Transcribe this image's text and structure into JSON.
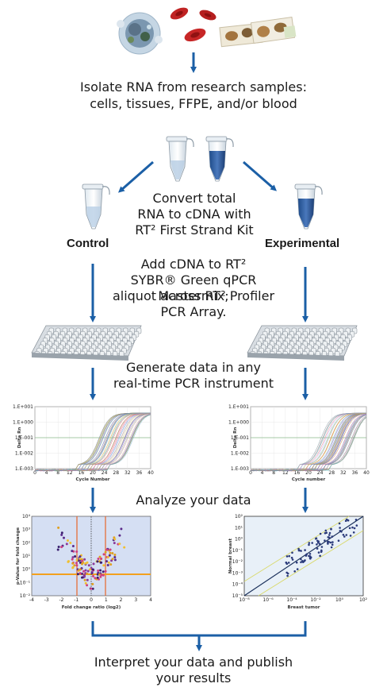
{
  "steps": {
    "isolate": [
      "Isolate RNA from research samples:",
      "cells, tissues, FFPE, and/or blood"
    ],
    "convert": [
      "Convert total",
      "RNA to cDNA with",
      "RT² First Strand Kit"
    ],
    "add": [
      "Add cDNA to RT²",
      "SYBR® Green qPCR Mastermix;",
      "aliquot across RT² Profiler",
      "PCR Array."
    ],
    "generate": [
      "Generate data in any",
      "real-time PCR instrument"
    ],
    "analyze": "Analyze your data",
    "interpret": [
      "Interpret your data and publish",
      "your results"
    ]
  },
  "labels": {
    "control": "Control",
    "experimental": "Experimental"
  },
  "amp_left": {
    "yticks": [
      "1.E+001",
      "1.E+000",
      "1.E-001",
      "1.E-002",
      "1.E-003"
    ],
    "xticks": [
      "0",
      "4",
      "8",
      "12",
      "16",
      "20",
      "24",
      "28",
      "32",
      "36",
      "40"
    ],
    "ylabel": "Delta Rn",
    "xlabel": "Cycle Number"
  },
  "amp_right": {
    "yticks": [
      "1.E+001",
      "1.E+000",
      "1.E-001",
      "1.E-002",
      "1.E-003"
    ],
    "xticks": [
      "0",
      "4",
      "8",
      "12",
      "16",
      "20",
      "24",
      "28",
      "32",
      "36",
      "40"
    ],
    "ylabel": "Delta Rn",
    "xlabel": "Cycle number"
  },
  "volcano": {
    "ylabel": "p-Value for fold change",
    "xlabel": "Fold change ratio (log2)",
    "yticks": [
      "10⁴",
      "10³",
      "10²",
      "10¹",
      "10⁰",
      "10⁻¹",
      "10⁻²"
    ],
    "xticks": [
      "-4",
      "-3",
      "-2",
      "-1",
      "0",
      "1",
      "2",
      "3",
      "4"
    ]
  },
  "scatter": {
    "ylabel": "Normal breast",
    "xlabel": "Breast tumor",
    "yticks": [
      "10²",
      "10¹",
      "10⁰",
      "10⁻¹",
      "10⁻²",
      "10⁻³",
      "10⁻⁴",
      "10⁻⁵"
    ],
    "xticks": [
      "10⁻⁸",
      "10⁻⁶",
      "10⁻⁴",
      "10⁻²",
      "10⁰",
      "10²"
    ]
  },
  "colors": {
    "arrow": "#1b5fa6",
    "tube_blue": "#2e5d9e",
    "volcano_bg": "#d5dff3",
    "scatter_bg": "#e8f0f8"
  }
}
